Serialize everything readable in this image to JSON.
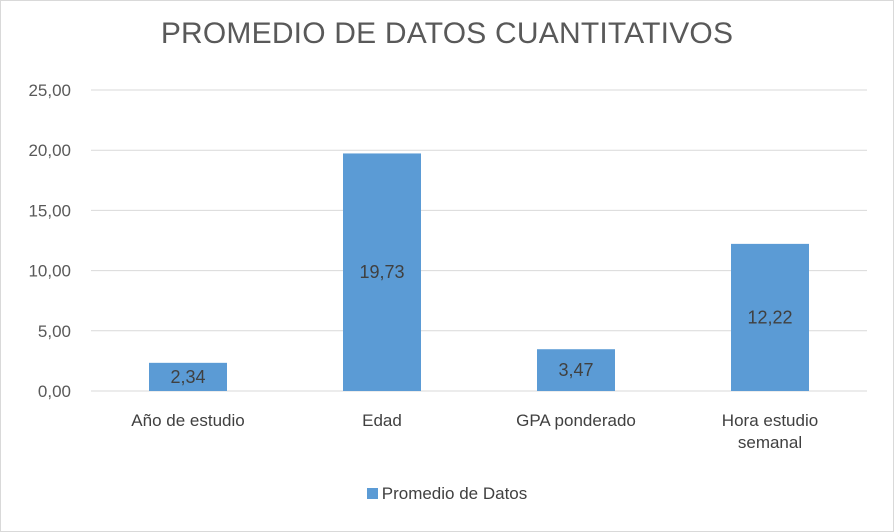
{
  "chart_data": {
    "type": "bar",
    "title": "PROMEDIO DE DATOS CUANTITATIVOS",
    "xlabel": "",
    "ylabel": "",
    "categories": [
      "Año de estudio",
      "Edad",
      "GPA ponderado",
      "Hora estudio semanal"
    ],
    "series": [
      {
        "name": "Promedio de Datos",
        "values": [
          2.34,
          19.73,
          3.47,
          12.22
        ],
        "labels": [
          "2,34",
          "19,73",
          "3,47",
          "12,22"
        ],
        "color": "#5b9bd5"
      }
    ],
    "ylim": [
      0,
      25
    ],
    "yticks": [
      0,
      5,
      10,
      15,
      20,
      25
    ],
    "ytick_labels": [
      "0,00",
      "5,00",
      "10,00",
      "15,00",
      "20,00",
      "25,00"
    ],
    "grid": true,
    "legend": "bottom"
  }
}
